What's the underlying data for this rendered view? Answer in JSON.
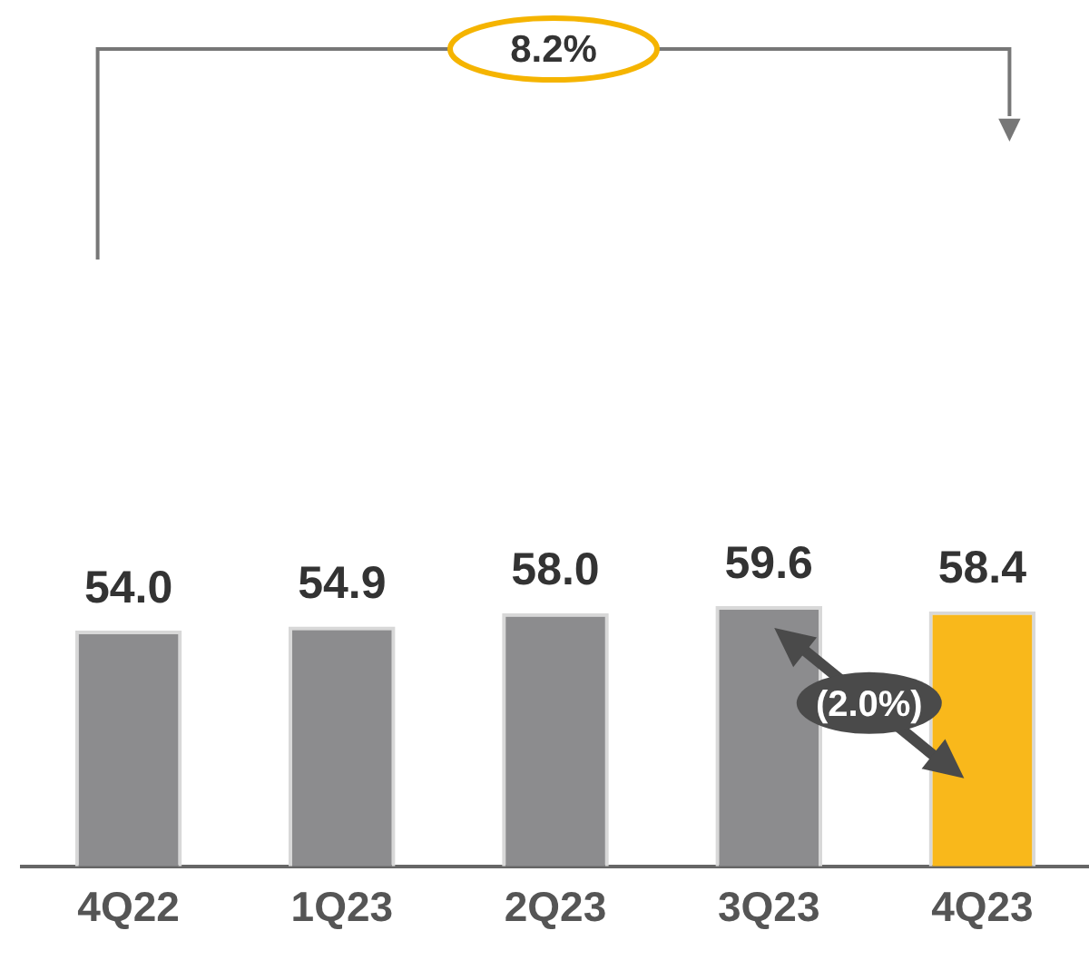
{
  "chart_data": {
    "type": "bar",
    "categories": [
      "4Q22",
      "1Q23",
      "2Q23",
      "3Q23",
      "4Q23"
    ],
    "values": [
      54.0,
      54.9,
      58.0,
      59.6,
      58.4
    ],
    "colors": [
      "#8c8c8e",
      "#8c8c8e",
      "#8c8c8e",
      "#8c8c8e",
      "#f9b81b"
    ],
    "value_labels": [
      "54.0",
      "54.9",
      "58.0",
      "59.6",
      "58.4"
    ],
    "grid": false,
    "legend": false,
    "tick_labels": "x",
    "annotations": [
      "8.2%",
      "(2.0%)"
    ]
  }
}
